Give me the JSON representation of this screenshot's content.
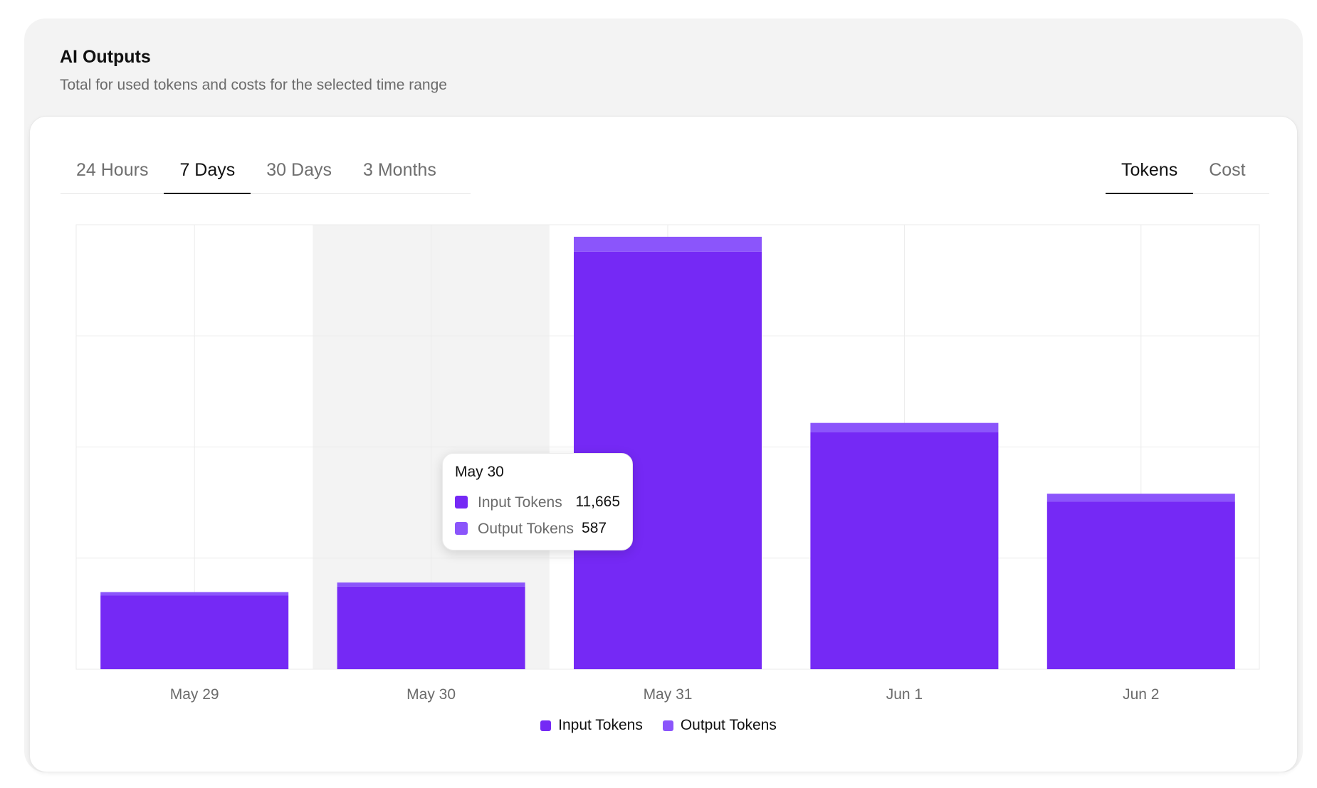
{
  "header": {
    "title": "AI Outputs",
    "subtitle": "Total for used tokens and costs for the selected time range"
  },
  "range_tabs": [
    {
      "label": "24 Hours",
      "active": false
    },
    {
      "label": "7 Days",
      "active": true
    },
    {
      "label": "30 Days",
      "active": false
    },
    {
      "label": "3 Months",
      "active": false
    }
  ],
  "metric_tabs": [
    {
      "label": "Tokens",
      "active": true
    },
    {
      "label": "Cost",
      "active": false
    }
  ],
  "colors": {
    "input": "#7529f5",
    "output": "#8b55fb",
    "hover_band": "#f3f3f3",
    "grid": "#ebebeb"
  },
  "tooltip": {
    "date": "May 30",
    "input_label": "Input Tokens",
    "input_value": "11,665",
    "output_label": "Output Tokens",
    "output_value": "587"
  },
  "chart_data": {
    "type": "bar",
    "stacked": true,
    "categories": [
      "May 29",
      "May 30",
      "May 31",
      "Jun 1",
      "Jun 2"
    ],
    "series": [
      {
        "name": "Input Tokens",
        "values": [
          10400,
          11665,
          59000,
          33500,
          23700
        ]
      },
      {
        "name": "Output Tokens",
        "values": [
          500,
          587,
          2100,
          1300,
          1100
        ]
      }
    ],
    "ylim": [
      0,
      62800
    ],
    "y_grid_lines": 4,
    "grid": true,
    "highlighted_category": "May 30",
    "legend_position": "bottom-center"
  }
}
